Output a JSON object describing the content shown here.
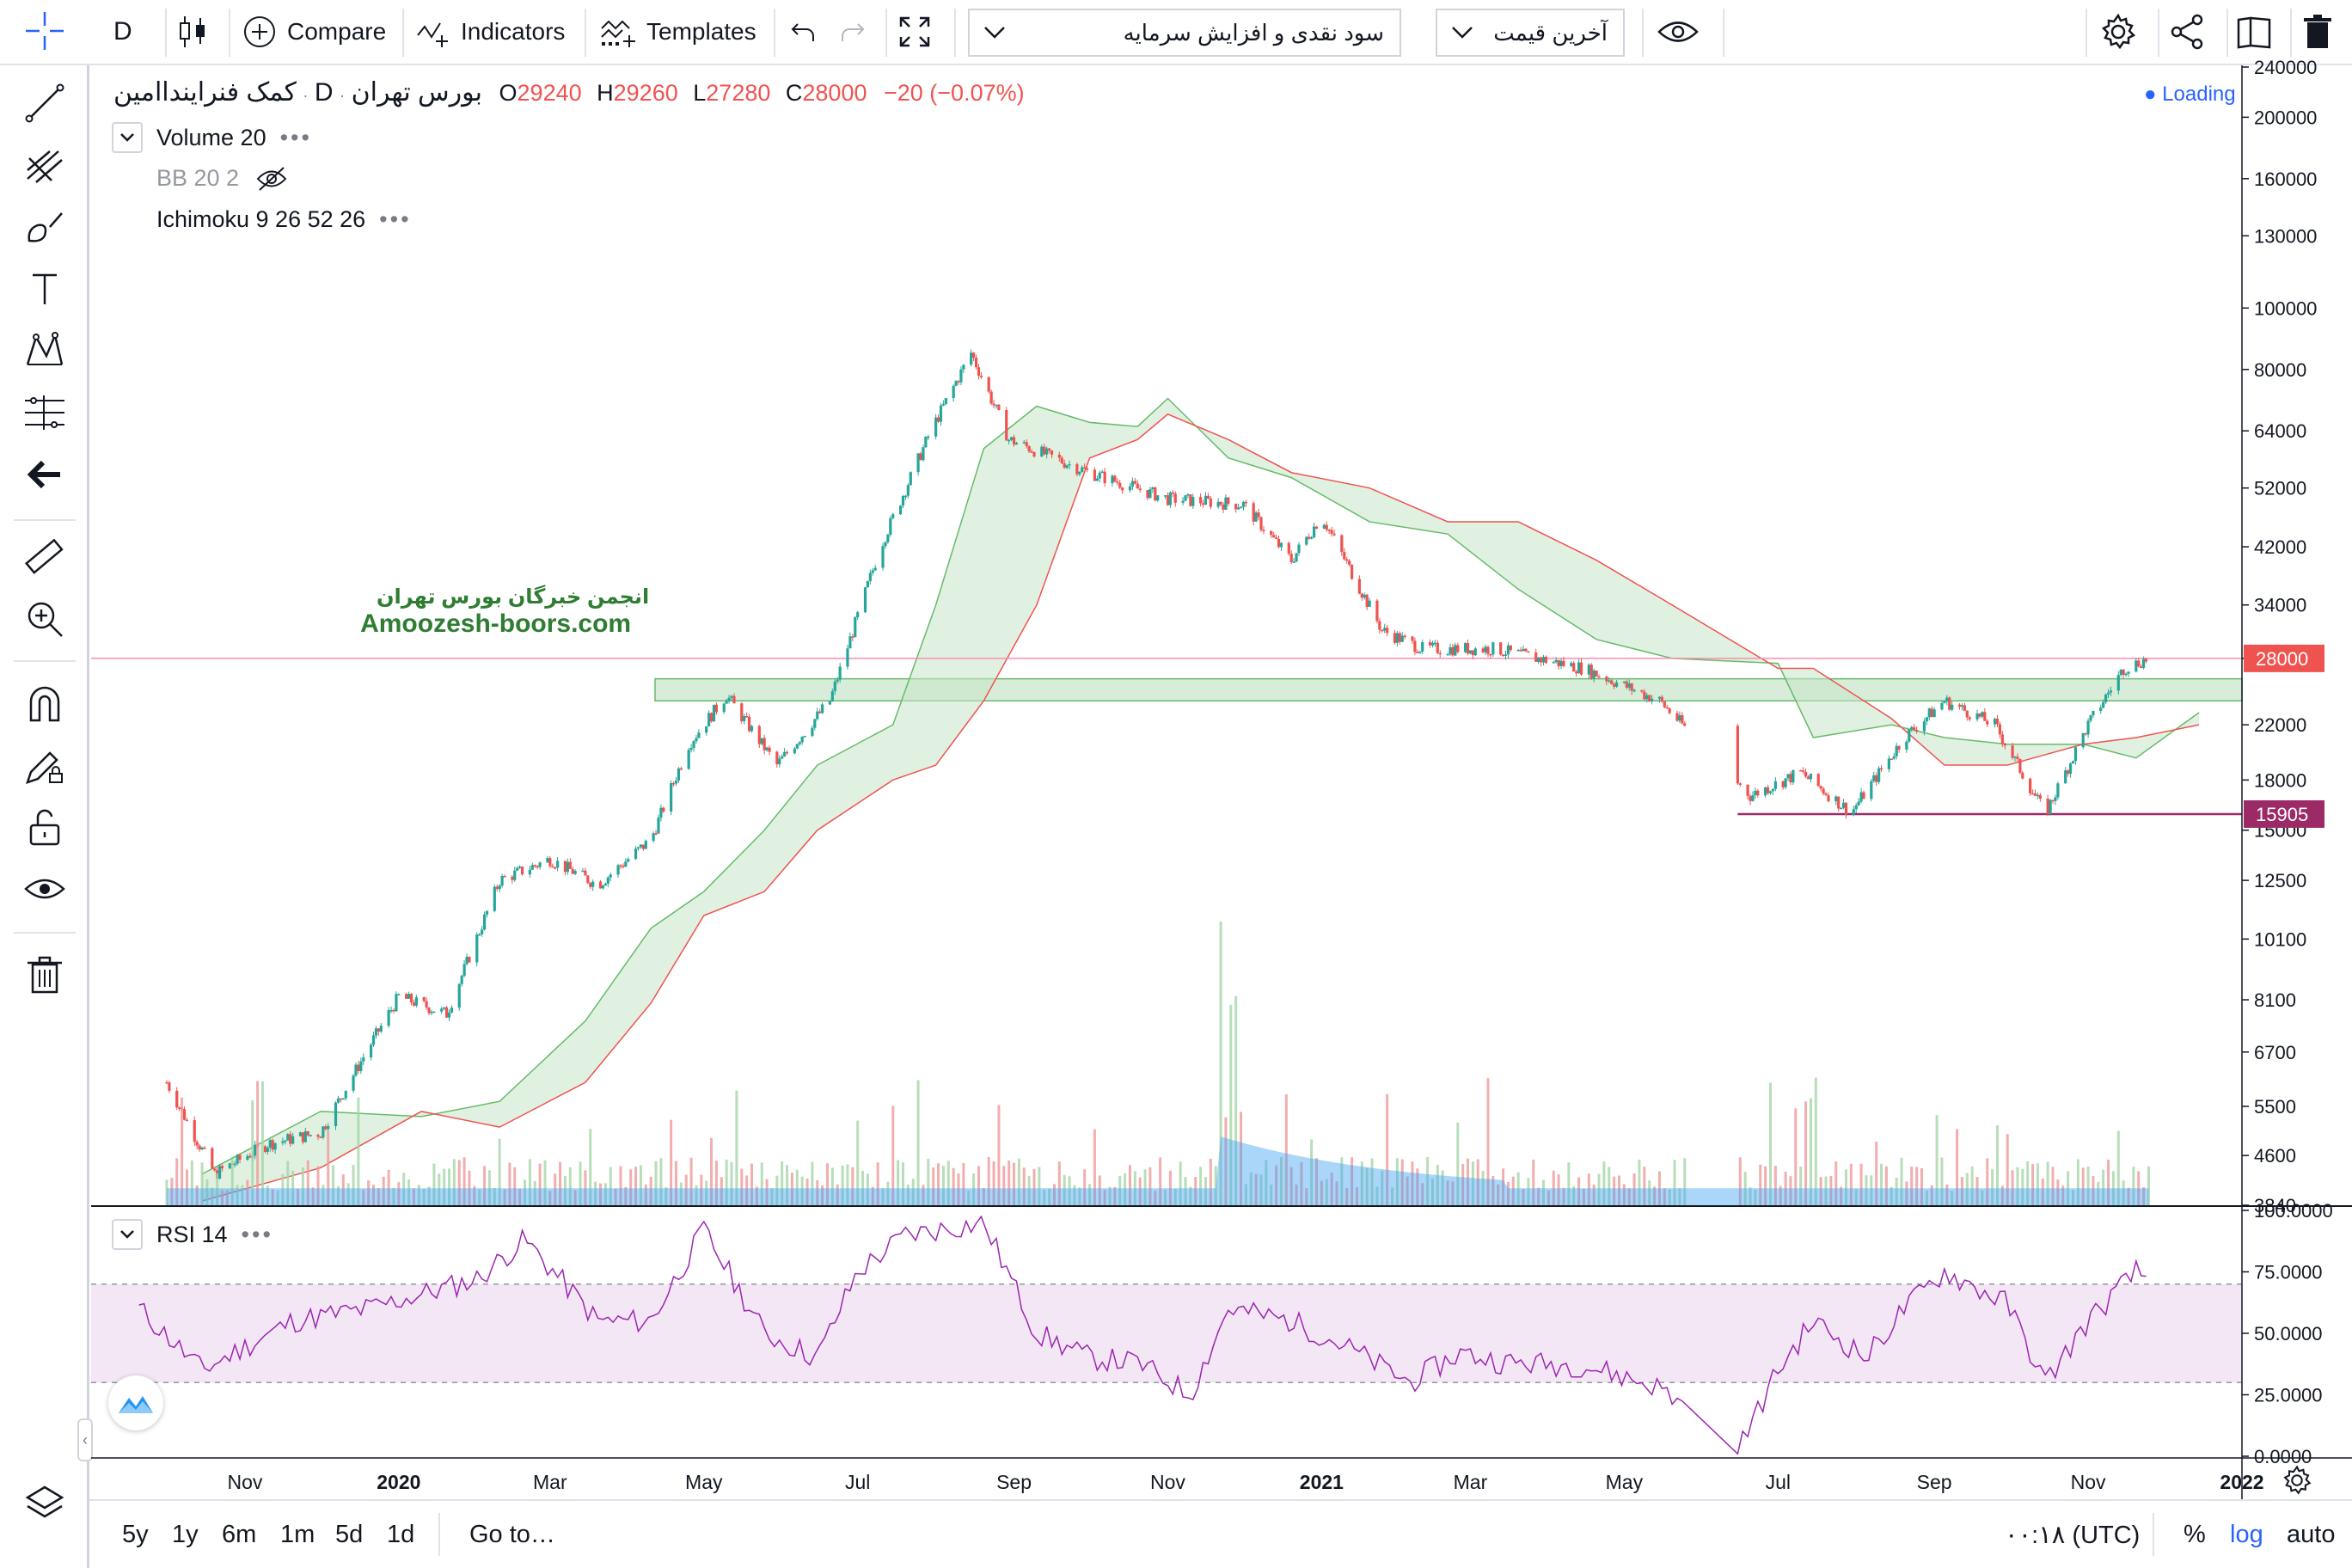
{
  "toolbar": {
    "interval": "D",
    "compare_label": "Compare",
    "indicators_label": "Indicators",
    "templates_label": "Templates",
    "adjustment_select": "سود نقدی و افزایش سرمایه",
    "price_type_select": "آخرین قیمت"
  },
  "legend": {
    "symbol_name": "کمک فنراینداامین",
    "interval": "D",
    "exchange": "بورس تهران",
    "o_label": "O",
    "o_value": "29240",
    "h_label": "H",
    "h_value": "29260",
    "l_label": "L",
    "l_value": "27280",
    "c_label": "C",
    "c_value": "28000",
    "change": "−20 (−0.07%)",
    "loading": "Loading",
    "volume": "Volume 20",
    "bb": "BB 20 2",
    "ichimoku": "Ichimoku 9 26 52 26",
    "rsi": "RSI 14"
  },
  "watermark": {
    "line1": "انجمن خبرگان بورس تهران",
    "line2": "Amoozesh-boors.com"
  },
  "price_axis": {
    "labels": [
      "240000",
      "200000",
      "160000",
      "130000",
      "100000",
      "80000",
      "64000",
      "52000",
      "42000",
      "34000",
      "28000",
      "22000",
      "18000",
      "15000",
      "12500",
      "10100",
      "8100",
      "6700",
      "5500",
      "4600",
      "3840"
    ],
    "last_price_label": "28000",
    "level_label": "15905"
  },
  "rsi_axis": {
    "labels": [
      "100.0000",
      "75.0000",
      "50.0000",
      "25.0000",
      "0.0000"
    ]
  },
  "time_axis": {
    "labels": [
      "Nov",
      "2020",
      "Mar",
      "May",
      "Jul",
      "Sep",
      "Nov",
      "2021",
      "Mar",
      "May",
      "Jul",
      "Sep",
      "Nov",
      "2022"
    ]
  },
  "bottom": {
    "ranges": [
      "5y",
      "1y",
      "6m",
      "1m",
      "5d",
      "1d"
    ],
    "goto": "Go to…",
    "time": "۰۰:۱۸ (UTC)",
    "percent": "%",
    "log": "log",
    "auto": "auto"
  },
  "colors": {
    "up": "#26a69a",
    "down": "#ef5350",
    "accent": "#2962ff",
    "last_price_bg": "#ef5350",
    "level_bg": "#9c2a67",
    "rsi_line": "#9c27b0",
    "rsi_band": "#f3e6f5",
    "zone_green": "#c8e6c9",
    "watermark": "#2e7d32"
  },
  "chart_data": {
    "type": "candlestick",
    "scale": "log",
    "y_range": [
      3840,
      240000
    ],
    "x_range": [
      "2019-09",
      "2022-01"
    ],
    "last_close": 28000,
    "horizontal_levels": [
      28000,
      15905
    ],
    "zone": [
      24000,
      26000
    ],
    "price_path": [
      [
        "2019-10-01",
        6000
      ],
      [
        "2019-10-20",
        4300
      ],
      [
        "2019-11-10",
        4800
      ],
      [
        "2019-12-01",
        5000
      ],
      [
        "2019-12-20",
        6800
      ],
      [
        "2020-01-01",
        8200
      ],
      [
        "2020-01-20",
        7700
      ],
      [
        "2020-02-10",
        12500
      ],
      [
        "2020-03-01",
        13500
      ],
      [
        "2020-03-20",
        12300
      ],
      [
        "2020-04-10",
        14500
      ],
      [
        "2020-04-25",
        20500
      ],
      [
        "2020-05-10",
        24500
      ],
      [
        "2020-05-30",
        19000
      ],
      [
        "2020-06-20",
        24000
      ],
      [
        "2020-07-10",
        42000
      ],
      [
        "2020-07-30",
        64000
      ],
      [
        "2020-08-15",
        85000
      ],
      [
        "2020-08-30",
        62000
      ],
      [
        "2020-10-01",
        55000
      ],
      [
        "2020-11-01",
        50000
      ],
      [
        "2020-12-01",
        49000
      ],
      [
        "2020-12-20",
        40000
      ],
      [
        "2021-01-01",
        47000
      ],
      [
        "2021-01-25",
        31000
      ],
      [
        "2021-02-10",
        29000
      ],
      [
        "2021-03-10",
        29000
      ],
      [
        "2021-04-15",
        27000
      ],
      [
        "2021-05-15",
        24000
      ],
      [
        "2021-06-20",
        17000
      ],
      [
        "2021-07-10",
        18500
      ],
      [
        "2021-07-30",
        16000
      ],
      [
        "2021-08-20",
        21000
      ],
      [
        "2021-09-05",
        24000
      ],
      [
        "2021-09-25",
        22000
      ],
      [
        "2021-10-15",
        15900
      ],
      [
        "2021-11-01",
        22000
      ],
      [
        "2021-11-15",
        27000
      ],
      [
        "2021-11-25",
        28000
      ]
    ],
    "rsi_levels": [
      70,
      30
    ],
    "rsi_range": [
      0,
      100
    ]
  }
}
